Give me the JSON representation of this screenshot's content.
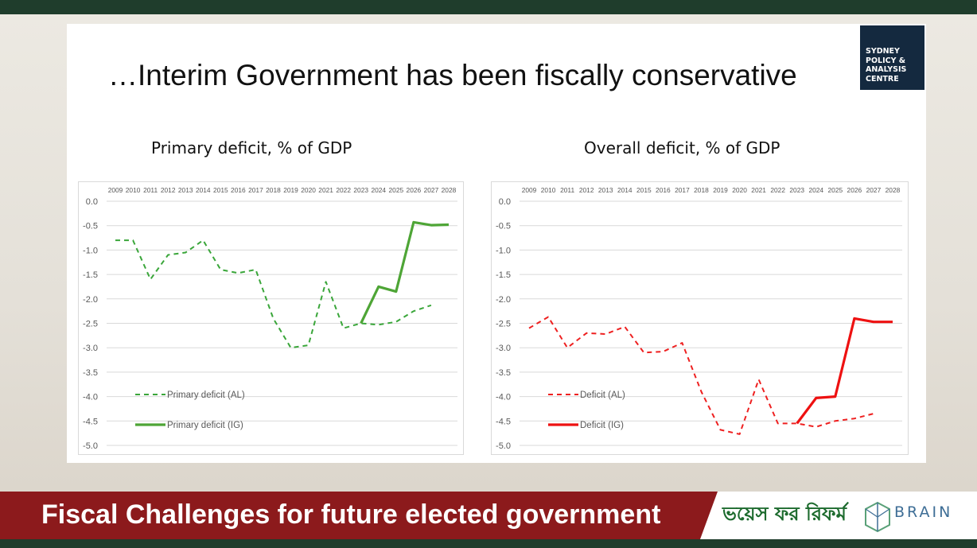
{
  "slide": {
    "title": "…Interim Government has been fiscally conservative",
    "logo_lines": [
      "SYDNEY",
      "POLICY &",
      "ANALYSIS",
      "CENTRE"
    ],
    "footer_text": "Fiscal Challenges for future elected government",
    "partner_logo_text": "ভয়েস ফর রিফর্ম",
    "brain_text": "BRAIN"
  },
  "chart_data": [
    {
      "type": "line",
      "title": "Primary deficit, % of GDP",
      "categories": [
        "2009",
        "2010",
        "2011",
        "2012",
        "2013",
        "2014",
        "2015",
        "2016",
        "2017",
        "2018",
        "2019",
        "2020",
        "2021",
        "2022",
        "2023",
        "2024",
        "2025",
        "2026",
        "2027",
        "2028"
      ],
      "yticks": [
        "0.0",
        "-0.5",
        "-1.0",
        "-1.5",
        "-2.0",
        "-2.5",
        "-3.0",
        "-3.5",
        "-4.0",
        "-4.5",
        "-5.0"
      ],
      "ylim": [
        -5.0,
        0.0
      ],
      "grid": true,
      "x_axis_position": "top",
      "legend_position": "bottom-left",
      "series": [
        {
          "name": "Primary deficit (AL)",
          "style": "dashed",
          "color": "#3aa63a",
          "values": [
            -0.8,
            -0.8,
            -1.6,
            -1.1,
            -1.05,
            -0.8,
            -1.4,
            -1.47,
            -1.4,
            -2.4,
            -3.0,
            -2.95,
            -1.65,
            -2.6,
            -2.5,
            -2.53,
            -2.47,
            -2.25,
            -2.13,
            null
          ]
        },
        {
          "name": "Primary deficit (IG)",
          "style": "solid",
          "color": "#4ea536",
          "values": [
            null,
            null,
            null,
            null,
            null,
            null,
            null,
            null,
            null,
            null,
            null,
            null,
            null,
            null,
            -2.5,
            -1.75,
            -1.85,
            -0.43,
            -0.49,
            -0.48
          ]
        }
      ]
    },
    {
      "type": "line",
      "title": "Overall deficit, % of GDP",
      "categories": [
        "2009",
        "2010",
        "2011",
        "2012",
        "2013",
        "2014",
        "2015",
        "2016",
        "2017",
        "2018",
        "2019",
        "2020",
        "2021",
        "2022",
        "2023",
        "2024",
        "2025",
        "2026",
        "2027",
        "2028"
      ],
      "yticks": [
        "0.0",
        "-0.5",
        "-1.0",
        "-1.5",
        "-2.0",
        "-2.5",
        "-3.0",
        "-3.5",
        "-4.0",
        "-4.5",
        "-5.0"
      ],
      "ylim": [
        -5.0,
        0.0
      ],
      "grid": true,
      "x_axis_position": "top",
      "legend_position": "bottom-left",
      "series": [
        {
          "name": "Deficit (AL)",
          "style": "dashed",
          "color": "#ee2020",
          "values": [
            -2.6,
            -2.37,
            -3.0,
            -2.7,
            -2.72,
            -2.57,
            -3.1,
            -3.08,
            -2.9,
            -3.9,
            -4.68,
            -4.77,
            -3.65,
            -4.55,
            -4.55,
            -4.62,
            -4.5,
            -4.45,
            -4.35,
            null
          ]
        },
        {
          "name": "Deficit (IG)",
          "style": "solid",
          "color": "#ee1111",
          "values": [
            null,
            null,
            null,
            null,
            null,
            null,
            null,
            null,
            null,
            null,
            null,
            null,
            null,
            null,
            -4.55,
            -4.03,
            -4.0,
            -2.4,
            -2.47,
            -2.47
          ]
        }
      ]
    }
  ]
}
